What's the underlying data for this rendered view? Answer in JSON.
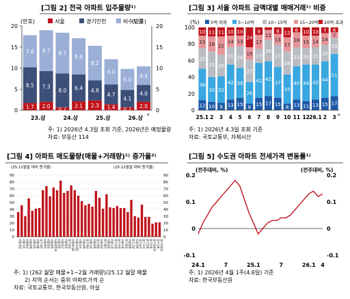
{
  "panels": {
    "p2": {
      "title": "[그림 2] 전국 아파트 입주물량¹⁾",
      "left_unit": "(만호)",
      "right_unit": "(만호)",
      "legend": [
        "서울",
        "경기인천",
        "비수도권"
      ],
      "notes": [
        "주: 1) 2026년 4.3일 조회 기준, 2026년은 예정물량",
        "자료: 부동산 114"
      ]
    },
    "p3": {
      "title": "[그림 3] 서울 아파트 금액대별 매매거래¹⁾ 비중",
      "unit": "(%)",
      "legend": [
        "5억 이하",
        "5~10억",
        "10~15억",
        "15~20억",
        "20억 초과"
      ],
      "notes": [
        "주: 1) 2026년 4.3일 조회 기준",
        "자료: 국토교통부, 자체시산"
      ]
    },
    "p4": {
      "title": "[그림 4] 아파트 매도물량(매물+거래량)¹⁾ 증가율²⁾",
      "left_unit": "(25.12월말 대비 증가율)",
      "right_unit": "(25.12월말 대비 증가율)",
      "notes": [
        "주: 1) (262 월말 매물+1~2월 거래량)/25.12 월말 매물",
        "2) 지역 순서는 중위 아파트가격 순",
        "자료: 국토교통부, 한국부동산원, 아실"
      ]
    },
    "p5": {
      "title": "[그림 5] 수도권 아파트 전세가격 변동률¹⁾",
      "left_unit": "(전주대비, %)",
      "right_unit": "(전주대비, %)",
      "notes": [
        "주: 1) 2026년 4월 1주(4.6일) 기준",
        "자료: 한국부동산원"
      ]
    }
  },
  "colors": {
    "seoul": "#c0141c",
    "gyeonggi": "#3c4f78",
    "nonmetro": "#9aaed6",
    "b1": "#1f5aa6",
    "b2": "#39a7e0",
    "b3": "#b9bcc2",
    "b4": "#e6959a",
    "b5": "#c0141c",
    "bar4": "#c0141c",
    "line5": "#c0141c"
  },
  "chart_data": [
    {
      "type": "bar",
      "stacked": true,
      "categories": [
        "23.상",
        "",
        "24.상",
        "",
        "25.상",
        "",
        "26.상",
        ""
      ],
      "category_note": "e",
      "series": [
        {
          "name": "서울",
          "values": [
            1.7,
            2.0,
            0.7,
            2.1,
            2.3,
            1.4,
            0.7,
            2.0
          ]
        },
        {
          "name": "경기인천",
          "values": [
            8.5,
            7.3,
            8.0,
            6.4,
            4.8,
            4.7,
            4.1,
            4.0
          ]
        },
        {
          "name": "비수도권",
          "values": [
            7.6,
            9.7,
            9.7,
            8.6,
            8.2,
            6.0,
            5.0,
            4.4
          ]
        }
      ],
      "ylim": [
        0,
        20
      ],
      "yticks": [
        0,
        5,
        10,
        15,
        20
      ]
    },
    {
      "type": "bar",
      "stacked": true,
      "percent": true,
      "categories": [
        "25.1",
        "2",
        "3",
        "4",
        "5",
        "6",
        "7",
        "8",
        "9",
        "10",
        "11",
        "12",
        "26.1",
        "2",
        "3"
      ],
      "category_note": "p",
      "series": [
        {
          "name": "5억 이하",
          "values": [
            12,
            10,
            9,
            13,
            15,
            8,
            15,
            17,
            15,
            8,
            13,
            11,
            13,
            15,
            17
          ]
        },
        {
          "name": "5~10억",
          "values": [
            38,
            30,
            32,
            42,
            36,
            26,
            42,
            42,
            37,
            35,
            40,
            44,
            42,
            44,
            51
          ]
        },
        {
          "name": "10~15억",
          "values": [
            25,
            31,
            26,
            21,
            26,
            27,
            17,
            26,
            27,
            28,
            23,
            20,
            21,
            20,
            19
          ]
        },
        {
          "name": "15~20억",
          "values": [
            15,
            18,
            22,
            14,
            13,
            15,
            17,
            12,
            13,
            17,
            18,
            15,
            14,
            14,
            7
          ]
        },
        {
          "name": "20억 초과",
          "values": [
            10,
            11,
            11,
            10,
            10,
            24,
            9,
            3,
            8,
            12,
            6,
            10,
            10,
            7,
            6
          ]
        }
      ],
      "ylim": [
        0,
        100
      ],
      "yticks": [
        0,
        20,
        40,
        60,
        80,
        100
      ]
    },
    {
      "type": "bar",
      "categories": [
        "서울강남",
        "서울서초",
        "서울용산",
        "서울송파",
        "서울성동",
        "서울마포",
        "경기과천",
        "서울광진",
        "서울양천",
        "서울동작",
        "서울영등포",
        "서울강동",
        "서울중구",
        "서울종로",
        "경기성남",
        "서울동대문",
        "서울서대문",
        "서울강서",
        "서울성북",
        "경기하남",
        "서울구로",
        "서울은평",
        "경기광명",
        "서울관악",
        "경기용인",
        "서울금천",
        "서울노원",
        "경기안양",
        "경기수원",
        "서울도봉",
        "경기화성",
        "서울중랑",
        "경기고양",
        "서울강북",
        "경기부천",
        "경기구리",
        "경기의왕",
        "경기군포",
        "경기남양주",
        "경기김포",
        "경기의정부"
      ],
      "values": [
        36,
        46,
        30,
        56,
        38,
        41,
        42,
        68,
        74,
        59,
        72,
        68,
        82,
        64,
        67,
        75,
        68,
        60,
        52,
        46,
        48,
        44,
        67,
        57,
        41,
        62,
        43,
        42,
        45,
        42,
        42,
        36,
        54,
        30,
        28,
        47,
        29,
        29,
        19,
        21,
        21
      ],
      "ylim": [
        0,
        90
      ],
      "yticks": [
        0,
        10,
        20,
        30,
        40,
        50,
        60,
        70,
        80,
        90
      ]
    },
    {
      "type": "line",
      "xlabels": [
        "24.1",
        "7",
        "25.1",
        "7",
        "26.1",
        "4"
      ],
      "x": [
        "24.1",
        "24.2",
        "24.3",
        "24.4",
        "24.5",
        "24.6",
        "24.7",
        "24.8",
        "24.9",
        "24.10",
        "24.11",
        "24.12",
        "25.1",
        "25.2",
        "25.3",
        "25.4",
        "25.5",
        "25.6",
        "25.7",
        "25.8",
        "25.9",
        "25.10",
        "25.11",
        "25.12",
        "26.1",
        "26.2",
        "26.3",
        "26.4"
      ],
      "series": [
        {
          "name": "",
          "values": [
            -0.02,
            0.02,
            0.05,
            0.08,
            0.1,
            0.12,
            0.14,
            0.16,
            0.18,
            0.16,
            0.11,
            0.06,
            0.02,
            -0.02,
            0.0,
            0.02,
            0.03,
            0.03,
            0.04,
            0.04,
            0.05,
            0.07,
            0.09,
            0.11,
            0.13,
            0.14,
            0.12,
            0.13
          ]
        }
      ],
      "ylim": [
        -0.1,
        0.2
      ],
      "yticks": [
        -0.1,
        0,
        0.1,
        0.2
      ]
    }
  ]
}
